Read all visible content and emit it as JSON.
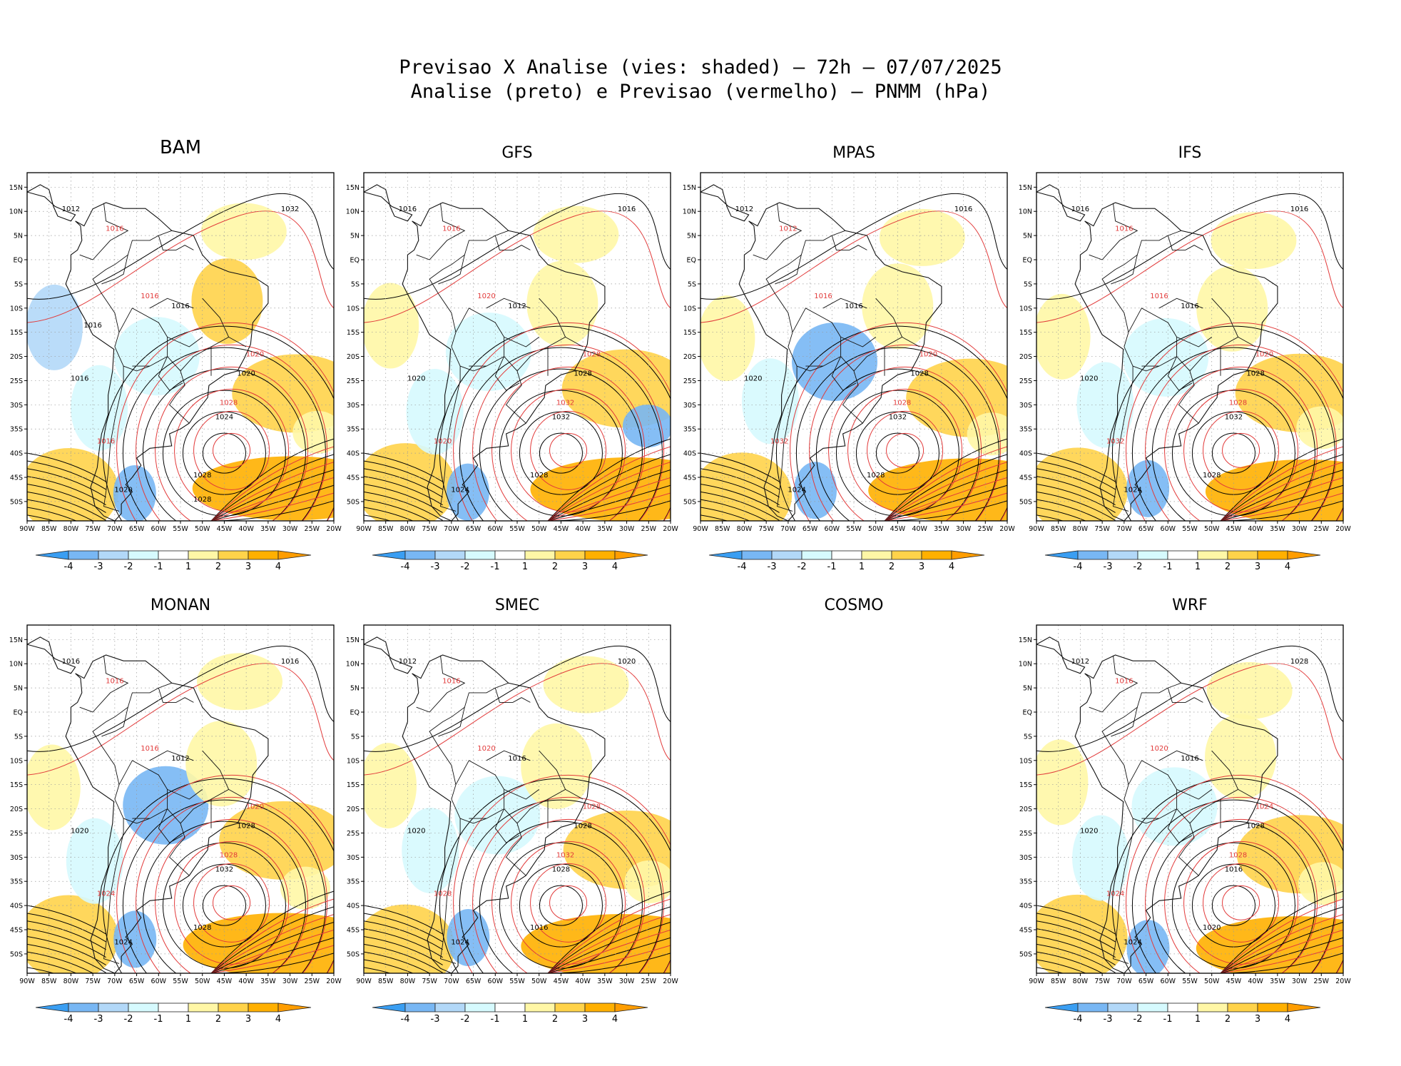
{
  "title": {
    "line1": "Previsao X Analise (vies: shaded) — 72h — 07/07/2025",
    "line2": "Analise (preto) e Previsao (vermelho) — PNMM (hPa)"
  },
  "axes": {
    "lat_labels": [
      "15N",
      "10N",
      "5N",
      "EQ",
      "5S",
      "10S",
      "15S",
      "20S",
      "25S",
      "30S",
      "35S",
      "40S",
      "45S",
      "50S"
    ],
    "lon_labels": [
      "90W",
      "85W",
      "80W",
      "75W",
      "70W",
      "65W",
      "60W",
      "55W",
      "50W",
      "45W",
      "40W",
      "35W",
      "30W",
      "25W",
      "20W"
    ]
  },
  "colorbar": {
    "labels": [
      "-4",
      "-3",
      "-2",
      "-1",
      "1",
      "2",
      "3",
      "4"
    ],
    "colors": [
      "#3a9ef2",
      "#78b7f4",
      "#b2d8f8",
      "#d6fafe",
      "#ffffff",
      "#fff7a6",
      "#ffd34a",
      "#ffb000",
      "#ff9d00"
    ]
  },
  "colors": {
    "analysis": "#000000",
    "forecast": "#e23a3a",
    "coast": "#111111",
    "grid": "#999999"
  },
  "panels": [
    {
      "name": "BAM",
      "has_map": true,
      "large": true,
      "labels_black": [
        "1012",
        "1016",
        "1016",
        "1020",
        "1020",
        "1024",
        "1028",
        "1032",
        "1016",
        "1028"
      ],
      "labels_red": [
        "1016",
        "1016",
        "1020",
        "1028",
        "1016"
      ]
    },
    {
      "name": "GFS",
      "has_map": true,
      "labels_black": [
        "1016",
        "1012",
        "1020",
        "1024",
        "1028",
        "1032",
        "1028",
        "1016"
      ],
      "labels_red": [
        "1016",
        "1020",
        "1028",
        "1032",
        "1020"
      ]
    },
    {
      "name": "MPAS",
      "has_map": true,
      "labels_black": [
        "1012",
        "1016",
        "1020",
        "1024",
        "1028",
        "1032",
        "1028",
        "1016"
      ],
      "labels_red": [
        "1012",
        "1016",
        "1020",
        "1028",
        "1032"
      ]
    },
    {
      "name": "IFS",
      "has_map": true,
      "labels_black": [
        "1016",
        "1016",
        "1020",
        "1024",
        "1028",
        "1032",
        "1028",
        "1016"
      ],
      "labels_red": [
        "1016",
        "1016",
        "1020",
        "1028",
        "1032"
      ]
    },
    {
      "name": "MONAN",
      "has_map": true,
      "labels_black": [
        "1016",
        "1012",
        "1020",
        "1024",
        "1028",
        "1032",
        "1028",
        "1016"
      ],
      "labels_red": [
        "1016",
        "1016",
        "1020",
        "1028",
        "1024"
      ]
    },
    {
      "name": "SMEC",
      "has_map": true,
      "labels_black": [
        "1012",
        "1016",
        "1020",
        "1024",
        "1028",
        "1028",
        "1016",
        "1020"
      ],
      "labels_red": [
        "1016",
        "1020",
        "1028",
        "1032",
        "1028"
      ]
    },
    {
      "name": "COSMO",
      "has_map": false,
      "labels_black": [],
      "labels_red": []
    },
    {
      "name": "WRF",
      "has_map": true,
      "labels_black": [
        "1012",
        "1016",
        "1020",
        "1024",
        "1028",
        "1016",
        "1020",
        "1028"
      ],
      "labels_red": [
        "1016",
        "1020",
        "1024",
        "1028",
        "1024"
      ]
    }
  ]
}
